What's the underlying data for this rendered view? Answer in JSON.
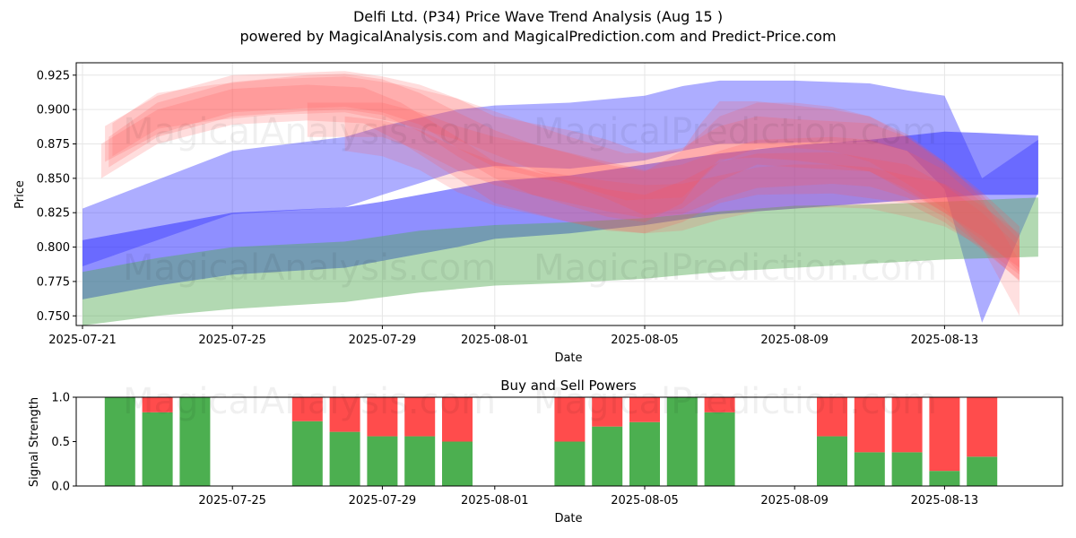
{
  "title_line1": "Delfi Ltd. (P34) Price Wave Trend Analysis (Aug 15 )",
  "title_line2": "powered by MagicalAnalysis.com and MagicalPrediction.com and Predict-Price.com",
  "watermarks": [
    "MagicalAnalysis.com",
    "MagicalPrediction.com"
  ],
  "colors": {
    "blue": "#3333ff",
    "red": "#ff5555",
    "green": "#55aa55",
    "buy": "#4caf50",
    "sell": "#ff4c4c",
    "grid": "#e6e6e6"
  },
  "chart_data": [
    {
      "type": "area",
      "title": "Delfi Ltd. (P34) Price Wave Trend Analysis (Aug 15 )",
      "xlabel": "Date",
      "ylabel": "Price",
      "xlim": [
        "2025-07-21",
        "2025-08-16"
      ],
      "ylim": [
        0.743,
        0.934
      ],
      "grid": true,
      "x_ticks": [
        "2025-07-21",
        "2025-07-25",
        "2025-07-29",
        "2025-08-01",
        "2025-08-05",
        "2025-08-09",
        "2025-08-13"
      ],
      "x_tick_offsets": [
        0,
        4,
        8,
        11,
        15,
        19,
        23
      ],
      "y_ticks": [
        0.75,
        0.775,
        0.8,
        0.825,
        0.85,
        0.875,
        0.9,
        0.925
      ],
      "y_tick_labels": [
        "0.750",
        "0.775",
        "0.800",
        "0.825",
        "0.850",
        "0.875",
        "0.900",
        "0.925"
      ],
      "bands": [
        {
          "name": "blue-upper",
          "color": "blue",
          "opacity": 0.4,
          "x": [
            0,
            4,
            7,
            8,
            10,
            11,
            13,
            15,
            16,
            17,
            19,
            21,
            22,
            23,
            24,
            25.5
          ],
          "upper": [
            0.828,
            0.87,
            0.88,
            0.888,
            0.9,
            0.903,
            0.905,
            0.91,
            0.917,
            0.921,
            0.921,
            0.919,
            0.914,
            0.91,
            0.85,
            0.878
          ],
          "lower": [
            0.786,
            0.824,
            0.829,
            0.838,
            0.855,
            0.859,
            0.857,
            0.863,
            0.87,
            0.875,
            0.876,
            0.877,
            0.87,
            0.842,
            0.745,
            0.84
          ]
        },
        {
          "name": "blue-lower",
          "color": "blue",
          "opacity": 0.55,
          "x": [
            0,
            2,
            4,
            7,
            8,
            10,
            11,
            13,
            15,
            17,
            19,
            21,
            23,
            24,
            25.5
          ],
          "upper": [
            0.805,
            0.815,
            0.825,
            0.829,
            0.833,
            0.843,
            0.848,
            0.852,
            0.86,
            0.868,
            0.874,
            0.878,
            0.884,
            0.883,
            0.881
          ],
          "lower": [
            0.762,
            0.772,
            0.78,
            0.785,
            0.79,
            0.8,
            0.806,
            0.81,
            0.816,
            0.824,
            0.828,
            0.832,
            0.836,
            0.838,
            0.838
          ]
        },
        {
          "name": "green-band",
          "color": "green",
          "opacity": 0.45,
          "x": [
            0,
            2,
            4,
            7,
            9,
            11,
            13,
            15,
            17,
            19,
            21,
            23,
            25.5
          ],
          "upper": [
            0.782,
            0.792,
            0.8,
            0.804,
            0.812,
            0.816,
            0.818,
            0.821,
            0.826,
            0.83,
            0.831,
            0.833,
            0.836
          ],
          "lower": [
            0.743,
            0.75,
            0.755,
            0.76,
            0.767,
            0.772,
            0.774,
            0.777,
            0.782,
            0.785,
            0.788,
            0.791,
            0.793
          ]
        },
        {
          "name": "red-wave-1",
          "color": "red",
          "opacity": 0.2,
          "x": [
            0.6,
            2,
            4,
            6,
            7,
            8,
            9,
            10,
            11,
            13,
            14,
            15,
            16,
            17,
            18,
            19,
            21,
            22,
            23,
            24,
            25
          ],
          "upper": [
            0.888,
            0.91,
            0.925,
            0.927,
            0.928,
            0.924,
            0.918,
            0.908,
            0.895,
            0.885,
            0.878,
            0.868,
            0.872,
            0.888,
            0.895,
            0.893,
            0.89,
            0.88,
            0.86,
            0.838,
            0.808
          ],
          "lower": [
            0.862,
            0.882,
            0.898,
            0.901,
            0.902,
            0.898,
            0.889,
            0.872,
            0.858,
            0.845,
            0.835,
            0.823,
            0.828,
            0.848,
            0.86,
            0.858,
            0.855,
            0.84,
            0.825,
            0.808,
            0.782
          ]
        },
        {
          "name": "red-wave-2",
          "color": "red",
          "opacity": 0.2,
          "x": [
            0.5,
            2,
            4,
            6,
            7.5,
            8.5,
            10,
            11,
            13,
            14,
            15,
            16,
            17,
            18,
            20,
            22,
            23,
            24,
            25
          ],
          "upper": [
            0.875,
            0.9,
            0.915,
            0.918,
            0.916,
            0.905,
            0.88,
            0.862,
            0.848,
            0.842,
            0.838,
            0.848,
            0.862,
            0.868,
            0.869,
            0.86,
            0.845,
            0.825,
            0.8
          ],
          "lower": [
            0.85,
            0.875,
            0.889,
            0.892,
            0.89,
            0.876,
            0.85,
            0.832,
            0.818,
            0.812,
            0.81,
            0.818,
            0.832,
            0.838,
            0.839,
            0.832,
            0.818,
            0.798,
            0.776
          ]
        },
        {
          "name": "red-wave-3",
          "color": "red",
          "opacity": 0.2,
          "x": [
            0.7,
            2,
            4,
            6,
            7,
            8,
            9,
            10,
            11,
            12,
            14,
            15,
            16,
            17,
            18,
            20,
            21,
            22,
            23,
            24,
            25
          ],
          "upper": [
            0.88,
            0.905,
            0.92,
            0.925,
            0.926,
            0.922,
            0.912,
            0.898,
            0.885,
            0.875,
            0.862,
            0.856,
            0.86,
            0.87,
            0.878,
            0.88,
            0.878,
            0.87,
            0.856,
            0.832,
            0.805
          ],
          "lower": [
            0.858,
            0.88,
            0.895,
            0.899,
            0.9,
            0.896,
            0.884,
            0.866,
            0.85,
            0.838,
            0.826,
            0.821,
            0.824,
            0.835,
            0.843,
            0.846,
            0.844,
            0.836,
            0.822,
            0.8,
            0.775
          ]
        },
        {
          "name": "red-wave-4",
          "color": "red",
          "opacity": 0.18,
          "x": [
            0.8,
            2,
            3.5,
            5,
            7,
            8.5,
            10,
            11.5,
            13,
            14.5,
            16,
            17,
            18,
            19,
            20,
            21,
            22,
            23,
            24,
            25
          ],
          "upper": [
            0.89,
            0.912,
            0.918,
            0.922,
            0.924,
            0.918,
            0.908,
            0.894,
            0.88,
            0.868,
            0.87,
            0.895,
            0.905,
            0.905,
            0.902,
            0.895,
            0.88,
            0.862,
            0.835,
            0.79
          ],
          "lower": [
            0.866,
            0.886,
            0.892,
            0.896,
            0.898,
            0.89,
            0.878,
            0.862,
            0.846,
            0.834,
            0.836,
            0.862,
            0.872,
            0.872,
            0.87,
            0.862,
            0.846,
            0.828,
            0.8,
            0.75
          ]
        },
        {
          "name": "purple-wave-1",
          "color": "red",
          "opacity": 0.2,
          "x": [
            6,
            8,
            9,
            10,
            11,
            12,
            13,
            14,
            15,
            16,
            16.5,
            17,
            18,
            19,
            20,
            21,
            22,
            23,
            24,
            25
          ],
          "upper": [
            0.905,
            0.905,
            0.898,
            0.888,
            0.88,
            0.875,
            0.868,
            0.86,
            0.855,
            0.87,
            0.89,
            0.906,
            0.906,
            0.903,
            0.9,
            0.895,
            0.882,
            0.862,
            0.84,
            0.815
          ],
          "lower": [
            0.88,
            0.88,
            0.87,
            0.856,
            0.845,
            0.838,
            0.83,
            0.822,
            0.818,
            0.832,
            0.85,
            0.864,
            0.865,
            0.863,
            0.86,
            0.855,
            0.842,
            0.825,
            0.805,
            0.785
          ]
        },
        {
          "name": "purple-wave-2",
          "color": "red",
          "opacity": 0.18,
          "x": [
            7,
            8,
            9,
            10,
            11,
            12,
            13,
            14,
            15,
            16,
            17,
            18,
            19,
            20,
            21,
            22,
            23,
            24,
            25
          ],
          "upper": [
            0.895,
            0.892,
            0.885,
            0.872,
            0.862,
            0.856,
            0.852,
            0.848,
            0.845,
            0.846,
            0.852,
            0.858,
            0.86,
            0.86,
            0.858,
            0.852,
            0.846,
            0.83,
            0.81
          ],
          "lower": [
            0.87,
            0.866,
            0.856,
            0.84,
            0.83,
            0.824,
            0.818,
            0.813,
            0.81,
            0.812,
            0.82,
            0.826,
            0.828,
            0.829,
            0.828,
            0.822,
            0.815,
            0.8,
            0.78
          ]
        }
      ]
    },
    {
      "type": "bar",
      "title": "Buy and Sell Powers",
      "xlabel": "Date",
      "ylabel": "Signal Strength",
      "ylim": [
        0,
        1
      ],
      "y_ticks": [
        0.0,
        0.5,
        1.0
      ],
      "y_tick_labels": [
        "0.0",
        "0.5",
        "1.0"
      ],
      "x_ticks": [
        "2025-07-25",
        "2025-07-29",
        "2025-08-01",
        "2025-08-05",
        "2025-08-09",
        "2025-08-13"
      ],
      "x_tick_offsets": [
        4,
        8,
        11,
        15,
        19,
        23
      ],
      "xlim": [
        "2025-07-21",
        "2025-08-16"
      ],
      "series": [
        {
          "name": "Buy",
          "color": "buy",
          "dates": [
            "2025-07-22",
            "2025-07-23",
            "2025-07-24",
            "2025-07-27",
            "2025-07-28",
            "2025-07-29",
            "2025-07-30",
            "2025-07-31",
            "2025-08-03",
            "2025-08-04",
            "2025-08-05",
            "2025-08-06",
            "2025-08-07",
            "2025-08-10",
            "2025-08-11",
            "2025-08-12",
            "2025-08-13",
            "2025-08-14"
          ],
          "offsets": [
            1,
            2,
            3,
            6,
            7,
            8,
            9,
            10,
            13,
            14,
            15,
            16,
            17,
            20,
            21,
            22,
            23,
            24
          ],
          "values": [
            1.0,
            0.83,
            1.0,
            0.73,
            0.61,
            0.56,
            0.56,
            0.5,
            0.5,
            0.67,
            0.72,
            1.0,
            0.83,
            0.56,
            0.38,
            0.38,
            0.17,
            0.33
          ]
        },
        {
          "name": "Sell",
          "color": "sell",
          "offsets": [
            1,
            2,
            3,
            6,
            7,
            8,
            9,
            10,
            13,
            14,
            15,
            16,
            17,
            20,
            21,
            22,
            23,
            24
          ],
          "values": [
            0.0,
            0.17,
            0.0,
            0.27,
            0.39,
            0.44,
            0.44,
            0.5,
            0.5,
            0.33,
            0.28,
            0.0,
            0.17,
            0.44,
            0.62,
            0.62,
            0.83,
            0.67
          ]
        }
      ]
    }
  ]
}
